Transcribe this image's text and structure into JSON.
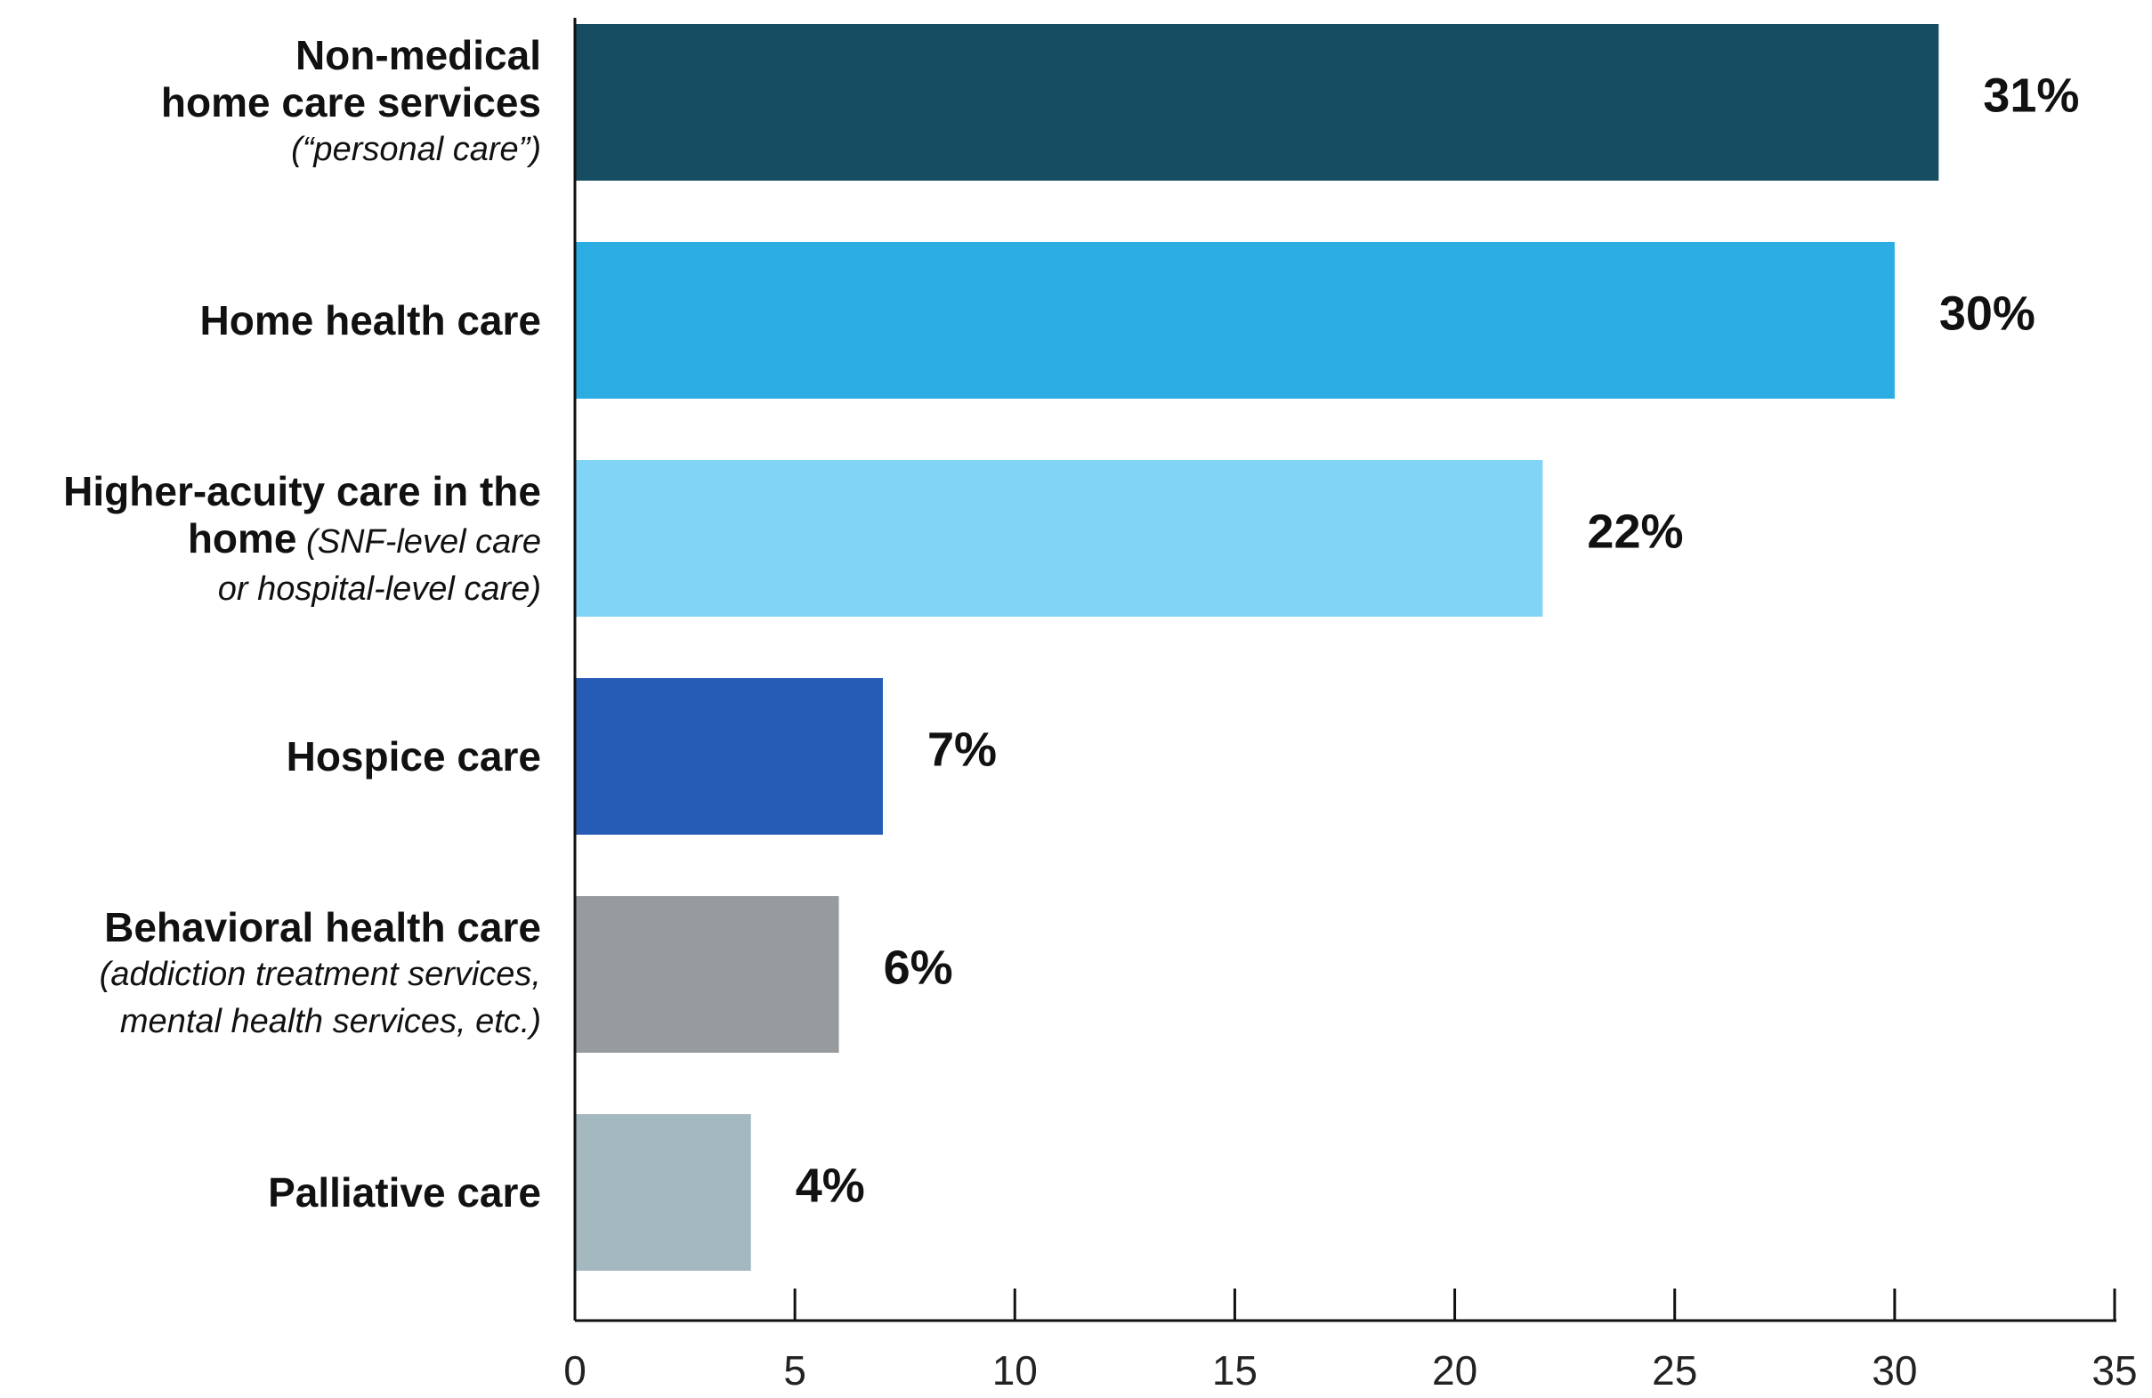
{
  "chart_data": {
    "type": "bar",
    "orientation": "horizontal",
    "title": "",
    "xlabel": "",
    "ylabel": "",
    "xlim": [
      0,
      35
    ],
    "x_ticks": [
      0,
      5,
      10,
      15,
      20,
      25,
      30,
      35
    ],
    "grid": false,
    "categories": [
      {
        "label_lines": [
          "Non-medical",
          "home care services"
        ],
        "sub_lines": [
          "(“personal care”)"
        ],
        "value": 31,
        "value_label": "31%",
        "color": "#174d62"
      },
      {
        "label_lines": [
          "Home health care"
        ],
        "sub_lines": [],
        "value": 30,
        "value_label": "30%",
        "color": "#2badE3"
      },
      {
        "label_lines": [
          "Higher-acuity care in the",
          "home"
        ],
        "inline_sub": "(SNF-level care",
        "sub_lines": [
          "or hospital-level care)"
        ],
        "value": 22,
        "value_label": "22%",
        "color": "#82d4f7"
      },
      {
        "label_lines": [
          "Hospice care"
        ],
        "sub_lines": [],
        "value": 7,
        "value_label": "7%",
        "color": "#275cb6"
      },
      {
        "label_lines": [
          "Behavioral health care"
        ],
        "sub_lines": [
          "(addiction treatment services,",
          "mental health services, etc.)"
        ],
        "value": 6,
        "value_label": "6%",
        "color": "#979b9e"
      },
      {
        "label_lines": [
          "Palliative care"
        ],
        "sub_lines": [],
        "value": 4,
        "value_label": "4%",
        "color": "#a4b8c0"
      }
    ]
  }
}
